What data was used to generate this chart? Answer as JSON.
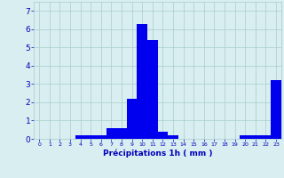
{
  "hours": [
    0,
    1,
    2,
    3,
    4,
    5,
    6,
    7,
    8,
    9,
    10,
    11,
    12,
    13,
    14,
    15,
    16,
    17,
    18,
    19,
    20,
    21,
    22,
    23
  ],
  "values": [
    0.0,
    0.0,
    0.0,
    0.0,
    0.2,
    0.2,
    0.2,
    0.6,
    0.6,
    2.2,
    6.3,
    5.4,
    0.4,
    0.2,
    0.0,
    0.0,
    0.0,
    0.0,
    0.0,
    0.0,
    0.2,
    0.2,
    0.2,
    3.2
  ],
  "bar_color": "#0000ee",
  "background_color": "#d8eef0",
  "grid_color": "#aacccc",
  "xlabel": "Précipitations 1h ( mm )",
  "xlabel_color": "#0000bb",
  "tick_color": "#0000bb",
  "ylim": [
    0,
    7.5
  ],
  "yticks": [
    0,
    1,
    2,
    3,
    4,
    5,
    6,
    7
  ],
  "bar_width": 1.0,
  "figsize": [
    3.2,
    2.0
  ],
  "dpi": 100
}
